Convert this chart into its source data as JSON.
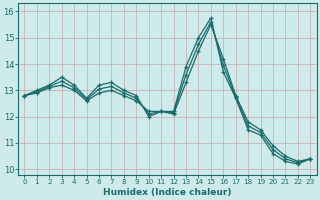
{
  "xlabel": "Humidex (Indice chaleur)",
  "bg_color": "#ceeaea",
  "grid_color_major": "#c0b8b8",
  "grid_color_minor": "#ddd0d0",
  "line_color": "#1a6b6b",
  "xlim": [
    -0.5,
    23.5
  ],
  "ylim": [
    9.8,
    16.3
  ],
  "yticks": [
    10,
    11,
    12,
    13,
    14,
    15,
    16
  ],
  "xticks": [
    0,
    1,
    2,
    3,
    4,
    5,
    6,
    7,
    8,
    9,
    10,
    11,
    12,
    13,
    14,
    15,
    16,
    17,
    18,
    19,
    20,
    21,
    22,
    23
  ],
  "series1_x": [
    0,
    1,
    2,
    3,
    4,
    5,
    6,
    7,
    8,
    9,
    10,
    11,
    12,
    13,
    14,
    15,
    16,
    17,
    18,
    19,
    20,
    21,
    22,
    23
  ],
  "series1_y": [
    12.8,
    13.0,
    13.2,
    13.5,
    13.2,
    12.7,
    13.2,
    13.3,
    13.0,
    12.8,
    12.0,
    12.2,
    12.2,
    13.9,
    15.0,
    15.75,
    13.7,
    12.7,
    11.5,
    11.3,
    10.6,
    10.3,
    10.2,
    10.4
  ],
  "series2_x": [
    0,
    1,
    2,
    3,
    4,
    5,
    6,
    7,
    8,
    9,
    10,
    11,
    12,
    13,
    14,
    15,
    16,
    17,
    18,
    19,
    20,
    21,
    22,
    23
  ],
  "series2_y": [
    12.8,
    12.9,
    13.1,
    13.2,
    13.0,
    12.6,
    12.9,
    13.0,
    12.8,
    12.6,
    12.2,
    12.2,
    12.1,
    13.3,
    14.5,
    15.5,
    14.2,
    12.8,
    11.8,
    11.5,
    10.9,
    10.5,
    10.3,
    10.4
  ],
  "series3_x": [
    0,
    1,
    2,
    3,
    4,
    5,
    6,
    7,
    8,
    9,
    10,
    11,
    12,
    13,
    14,
    15,
    16,
    17,
    18,
    19,
    20,
    21,
    22,
    23
  ],
  "series3_y": [
    12.8,
    12.95,
    13.15,
    13.35,
    13.1,
    12.65,
    13.05,
    13.15,
    12.9,
    12.7,
    12.1,
    12.2,
    12.15,
    13.6,
    14.75,
    15.6,
    13.95,
    12.75,
    11.65,
    11.4,
    10.75,
    10.4,
    10.25,
    10.4
  ]
}
